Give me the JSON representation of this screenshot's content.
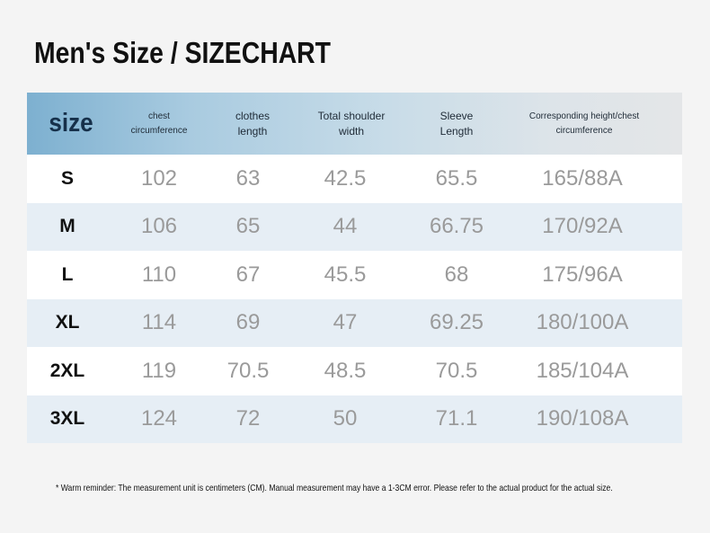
{
  "title": "Men's Size / SIZECHART",
  "header": {
    "size": "size",
    "chest": [
      "chest",
      "circumference"
    ],
    "length": [
      "clothes",
      "length"
    ],
    "shoulder": [
      "Total shoulder",
      "width"
    ],
    "sleeve": [
      "Sleeve",
      "Length"
    ],
    "height": [
      "Corresponding height/chest",
      "circumference"
    ]
  },
  "rows": [
    {
      "size": "S",
      "chest": "102",
      "length": "63",
      "shoulder": "42.5",
      "sleeve": "65.5",
      "height": "165/88A"
    },
    {
      "size": "M",
      "chest": "106",
      "length": "65",
      "shoulder": "44",
      "sleeve": "66.75",
      "height": "170/92A"
    },
    {
      "size": "L",
      "chest": "110",
      "length": "67",
      "shoulder": "45.5",
      "sleeve": "68",
      "height": "175/96A"
    },
    {
      "size": "XL",
      "chest": "114",
      "length": "69",
      "shoulder": "47",
      "sleeve": "69.25",
      "height": "180/100A"
    },
    {
      "size": "2XL",
      "chest": "119",
      "length": "70.5",
      "shoulder": "48.5",
      "sleeve": "70.5",
      "height": "185/104A"
    },
    {
      "size": "3XL",
      "chest": "124",
      "length": "72",
      "shoulder": "50",
      "sleeve": "71.1",
      "height": "190/108A"
    }
  ],
  "note": "* Warm reminder: The measurement unit is centimeters (CM). Manual measurement may have a 1-3CM error. Please refer to the actual product for the actual size."
}
